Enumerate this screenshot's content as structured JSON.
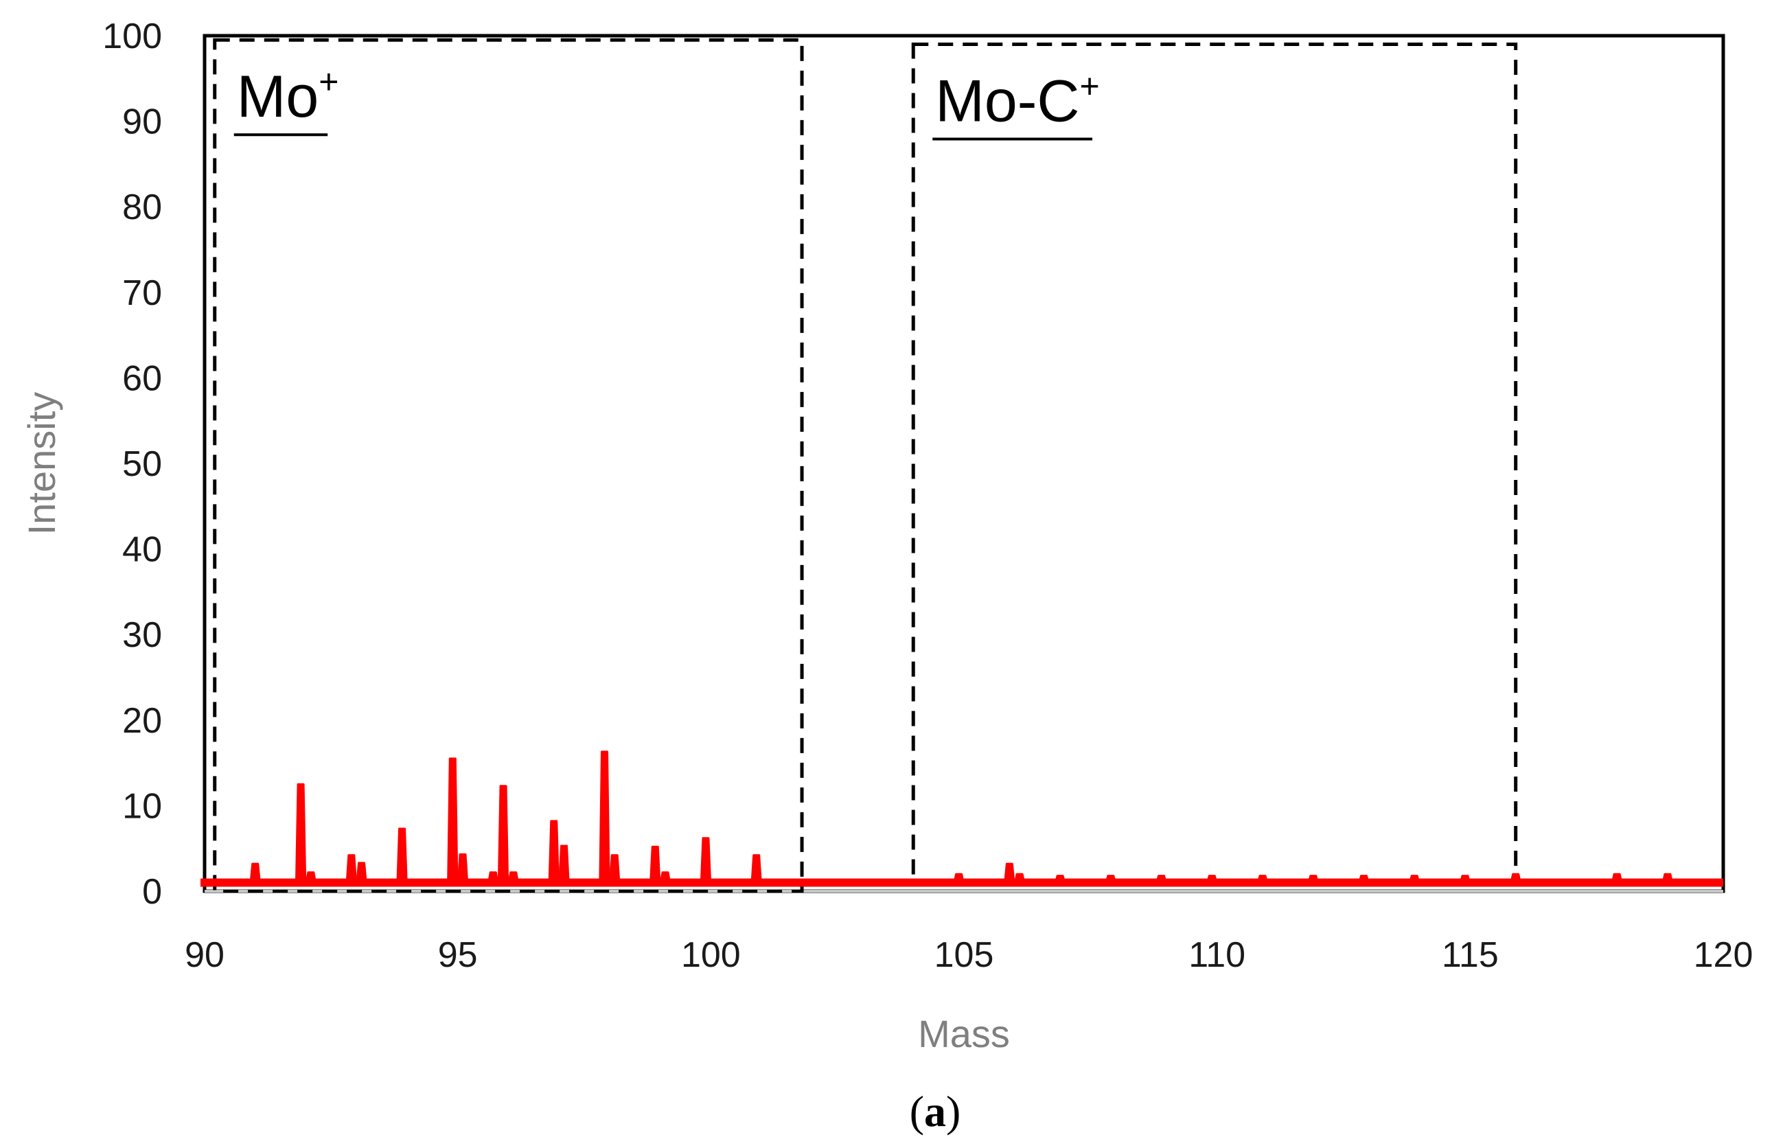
{
  "chart_data": {
    "type": "line",
    "xlabel": "Mass",
    "ylabel": "Intensity",
    "xlim": [
      90,
      120
    ],
    "ylim": [
      0,
      100
    ],
    "x_ticks": [
      90,
      95,
      100,
      105,
      110,
      115,
      120
    ],
    "y_ticks": [
      0,
      10,
      20,
      30,
      40,
      50,
      60,
      70,
      80,
      90,
      100
    ],
    "grid": false,
    "legend": "none",
    "series_color": "#ff0000",
    "baseline": 1,
    "peaks": [
      {
        "x": 91.0,
        "y": 3.2
      },
      {
        "x": 91.9,
        "y": 12.5
      },
      {
        "x": 92.1,
        "y": 2.2
      },
      {
        "x": 92.9,
        "y": 4.2
      },
      {
        "x": 93.1,
        "y": 3.3
      },
      {
        "x": 93.9,
        "y": 7.3
      },
      {
        "x": 94.9,
        "y": 15.5
      },
      {
        "x": 95.1,
        "y": 4.3
      },
      {
        "x": 95.7,
        "y": 2.2
      },
      {
        "x": 95.9,
        "y": 12.3
      },
      {
        "x": 96.1,
        "y": 2.2
      },
      {
        "x": 96.9,
        "y": 8.2
      },
      {
        "x": 97.1,
        "y": 5.3
      },
      {
        "x": 97.9,
        "y": 16.3
      },
      {
        "x": 98.1,
        "y": 4.2
      },
      {
        "x": 98.9,
        "y": 5.2
      },
      {
        "x": 99.1,
        "y": 2.2
      },
      {
        "x": 99.9,
        "y": 6.2
      },
      {
        "x": 100.9,
        "y": 4.2
      },
      {
        "x": 104.9,
        "y": 2.0
      },
      {
        "x": 105.9,
        "y": 3.2
      },
      {
        "x": 106.1,
        "y": 2.0
      },
      {
        "x": 106.9,
        "y": 1.8
      },
      {
        "x": 107.9,
        "y": 1.8
      },
      {
        "x": 108.9,
        "y": 1.8
      },
      {
        "x": 109.9,
        "y": 1.8
      },
      {
        "x": 110.9,
        "y": 1.8
      },
      {
        "x": 111.9,
        "y": 1.8
      },
      {
        "x": 112.9,
        "y": 1.8
      },
      {
        "x": 113.9,
        "y": 1.8
      },
      {
        "x": 114.9,
        "y": 1.8
      },
      {
        "x": 115.9,
        "y": 2.0
      },
      {
        "x": 117.9,
        "y": 2.0
      },
      {
        "x": 118.9,
        "y": 2.0
      }
    ],
    "regions": [
      {
        "label": "Mo",
        "superscript": "+",
        "x_start": 90.2,
        "x_end": 101.8,
        "y_start": 0,
        "y_end": 99.5
      },
      {
        "label": "Mo-C",
        "superscript": "+",
        "x_start": 104.0,
        "x_end": 115.9,
        "y_start": 1,
        "y_end": 99
      }
    ]
  },
  "panel_label": {
    "open": "(",
    "letter": "a",
    "close": ")"
  }
}
